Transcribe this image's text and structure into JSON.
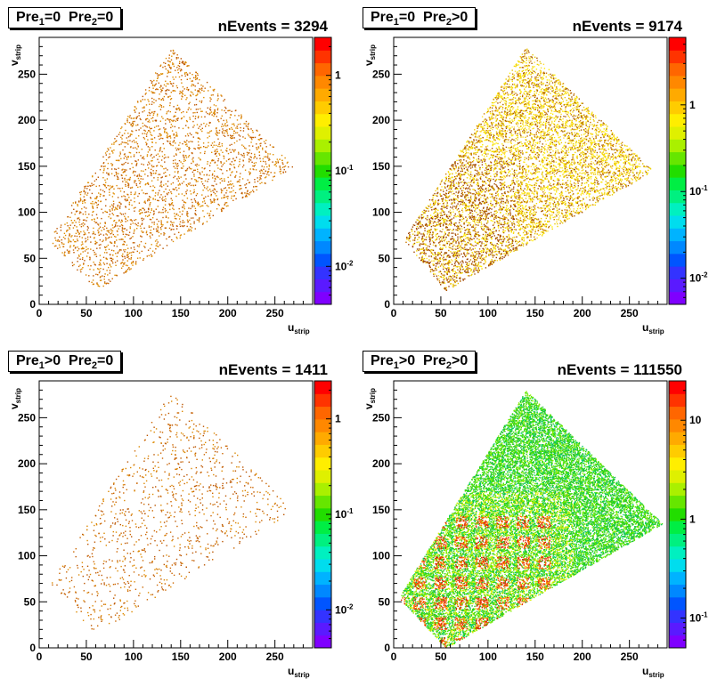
{
  "chart_data": [
    {
      "type": "heatmap",
      "title": "Pre1=0  Pre2=0",
      "title_parts": {
        "a": "Pre",
        "a_sub": "1",
        "a_rel": "=0",
        "b": "Pre",
        "b_sub": "2",
        "b_rel": "=0"
      },
      "stat_label": "nEvents = 3294",
      "nEvents": 3294,
      "xlabel": "u",
      "xlabel_sub": "strip",
      "ylabel": "v",
      "ylabel_sub": "strip",
      "xlim": [
        0,
        290
      ],
      "ylim": [
        0,
        290
      ],
      "x_ticks": [
        "0",
        "50",
        "100",
        "150",
        "200",
        "250"
      ],
      "y_ticks": [
        "0",
        "50",
        "100",
        "150",
        "200",
        "250"
      ],
      "colorbar": {
        "scale": "log",
        "range": [
          0.004,
          2.5
        ],
        "ticks": [
          "1",
          "10-1",
          "10-2"
        ]
      },
      "density_level": "sparse",
      "dominant_color": "#cc6600",
      "region": [
        [
          10,
          70
        ],
        [
          60,
          15
        ],
        [
          270,
          150
        ],
        [
          140,
          280
        ]
      ]
    },
    {
      "type": "heatmap",
      "title": "Pre1=0  Pre2>0",
      "title_parts": {
        "a": "Pre",
        "a_sub": "1",
        "a_rel": "=0",
        "b": "Pre",
        "b_sub": "2",
        "b_rel": ">0"
      },
      "stat_label": "nEvents = 9174",
      "nEvents": 9174,
      "xlabel": "u",
      "xlabel_sub": "strip",
      "ylabel": "v",
      "ylabel_sub": "strip",
      "xlim": [
        0,
        290
      ],
      "ylim": [
        0,
        290
      ],
      "x_ticks": [
        "0",
        "50",
        "100",
        "150",
        "200",
        "250"
      ],
      "y_ticks": [
        "0",
        "50",
        "100",
        "150",
        "200",
        "250"
      ],
      "colorbar": {
        "scale": "log",
        "range": [
          0.005,
          6
        ],
        "ticks": [
          "1",
          "10-1",
          "10-2"
        ]
      },
      "density_level": "medium",
      "dominant_color": "#e8d000",
      "region": [
        [
          10,
          70
        ],
        [
          55,
          15
        ],
        [
          275,
          145
        ],
        [
          140,
          280
        ]
      ]
    },
    {
      "type": "heatmap",
      "title": "Pre1>0  Pre2=0",
      "title_parts": {
        "a": "Pre",
        "a_sub": "1",
        "a_rel": ">0",
        "b": "Pre",
        "b_sub": "2",
        "b_rel": "=0"
      },
      "stat_label": "nEvents = 1411",
      "nEvents": 1411,
      "xlabel": "u",
      "xlabel_sub": "strip",
      "ylabel": "v",
      "ylabel_sub": "strip",
      "xlim": [
        0,
        290
      ],
      "ylim": [
        0,
        290
      ],
      "x_ticks": [
        "0",
        "50",
        "100",
        "150",
        "200",
        "250"
      ],
      "y_ticks": [
        "0",
        "50",
        "100",
        "150",
        "200",
        "250"
      ],
      "colorbar": {
        "scale": "log",
        "range": [
          0.004,
          2.5
        ],
        "ticks": [
          "1",
          "10-1",
          "10-2"
        ]
      },
      "density_level": "very-sparse",
      "dominant_color": "#cc6600",
      "region": [
        [
          10,
          70
        ],
        [
          60,
          15
        ],
        [
          270,
          150
        ],
        [
          140,
          280
        ]
      ]
    },
    {
      "type": "heatmap",
      "title": "Pre1>0  Pre2>0",
      "title_parts": {
        "a": "Pre",
        "a_sub": "1",
        "a_rel": ">0",
        "b": "Pre",
        "b_sub": "2",
        "b_rel": ">0"
      },
      "stat_label": "nEvents = 111550",
      "nEvents": 111550,
      "xlabel": "u",
      "xlabel_sub": "strip",
      "ylabel": "v",
      "ylabel_sub": "strip",
      "xlim": [
        0,
        290
      ],
      "ylim": [
        0,
        290
      ],
      "x_ticks": [
        "0",
        "50",
        "100",
        "150",
        "200",
        "250"
      ],
      "y_ticks": [
        "0",
        "50",
        "100",
        "150",
        "200",
        "250"
      ],
      "colorbar": {
        "scale": "log",
        "range": [
          0.05,
          25
        ],
        "ticks": [
          "10",
          "1",
          "10-1"
        ]
      },
      "density_level": "dense",
      "dominant_color": "#22cc22",
      "hotspot_color": "#dd2200",
      "region": [
        [
          5,
          55
        ],
        [
          55,
          0
        ],
        [
          285,
          135
        ],
        [
          140,
          280
        ]
      ]
    }
  ]
}
